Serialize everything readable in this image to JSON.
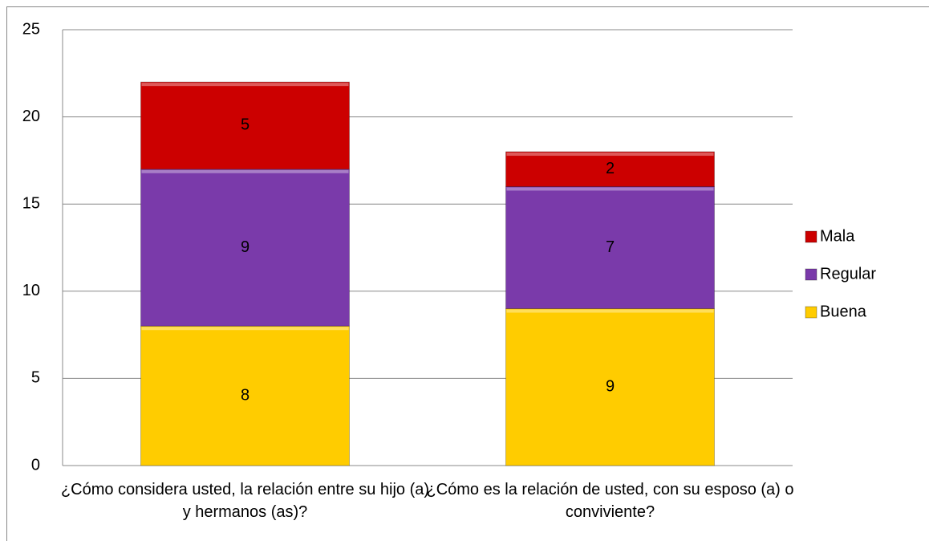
{
  "chart_data": {
    "type": "stacked_bar",
    "categories": [
      "¿Cómo considera usted, la relación entre su hijo (a) y hermanos (as)?",
      "¿Cómo es la relación de usted, con su esposo (a) o conviviente?"
    ],
    "series": [
      {
        "name": "Buena",
        "color": "#ffcc00",
        "values": [
          8,
          9
        ]
      },
      {
        "name": "Regular",
        "color": "#7a3aaa",
        "values": [
          9,
          7
        ]
      },
      {
        "name": "Mala",
        "color": "#cc0000",
        "values": [
          5,
          2
        ]
      }
    ],
    "ylim": [
      0,
      25
    ],
    "yticks": [
      0,
      5,
      10,
      15,
      20,
      25
    ],
    "grid": true,
    "legend": "right"
  }
}
